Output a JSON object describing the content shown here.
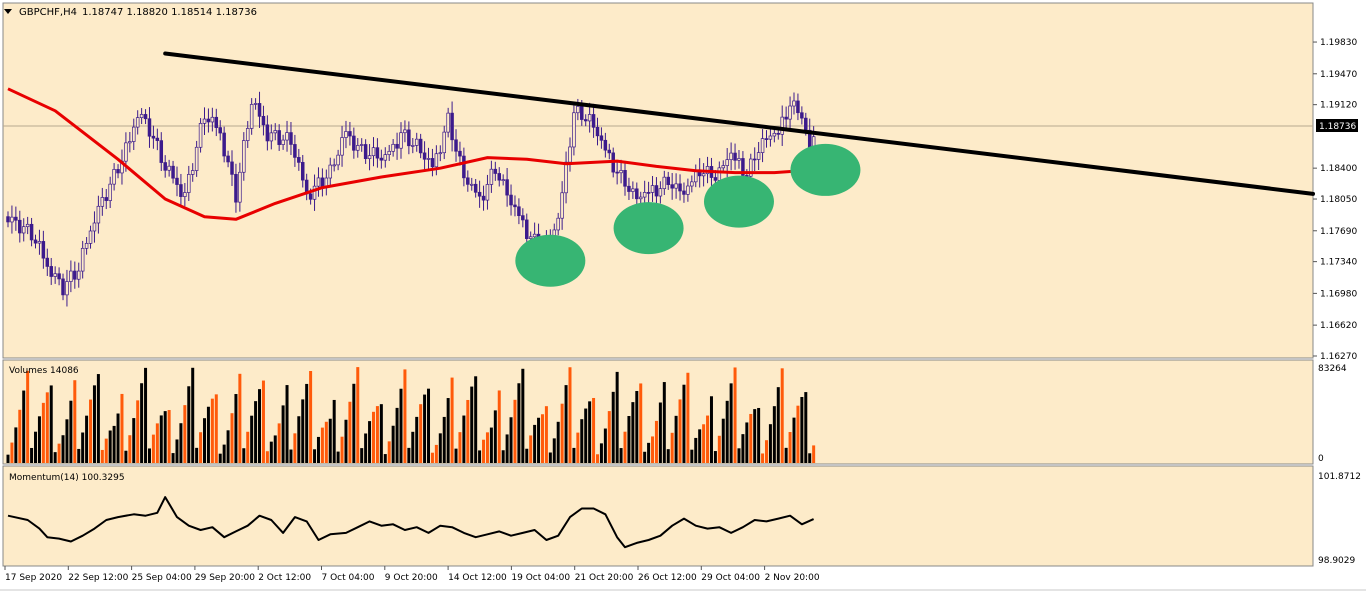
{
  "header": {
    "symbol_label": "GBPCHF,H4",
    "ohlc_label": "1.18747 1.18820 1.18514 1.18736"
  },
  "volumes": {
    "label": "Volumes 14086",
    "max_label": "83264",
    "min_label": "0"
  },
  "momentum": {
    "label": "Momentum(14) 100.3295",
    "max_label": "101.8712",
    "min_label": "98.9029"
  },
  "colors": {
    "background": "#fdebc9",
    "candle": "#3c1b8c",
    "ma": "#e80000",
    "trendline": "#000000",
    "vol_up": "#000000",
    "vol_down": "#ff5a0a",
    "marker": "#37b573"
  },
  "chart_data": [
    {
      "type": "candlestick",
      "instrument": "GBPCHF",
      "timeframe": "H4",
      "last_price": "1.18736",
      "ylim": [
        1.1627,
        1.2025
      ],
      "y_ticks": [
        "1.19830",
        "1.19470",
        "1.19120",
        "1.18400",
        "1.18050",
        "1.17690",
        "1.17340",
        "1.16980",
        "1.16620",
        "1.16270"
      ],
      "x_ticks": [
        "17 Sep 2020",
        "22 Sep 12:00",
        "25 Sep 04:00",
        "29 Sep 20:00",
        "2 Oct 12:00",
        "7 Oct 04:00",
        "9 Oct 20:00",
        "14 Oct 12:00",
        "19 Oct 04:00",
        "21 Oct 20:00",
        "26 Oct 12:00",
        "29 Oct 04:00",
        "2 Nov 20:00"
      ],
      "close_path": [
        [
          0,
          1.1785
        ],
        [
          6,
          1.1765
        ],
        [
          10,
          1.173
        ],
        [
          14,
          1.1705
        ],
        [
          18,
          1.1725
        ],
        [
          22,
          1.1785
        ],
        [
          27,
          1.183
        ],
        [
          31,
          1.187
        ],
        [
          33,
          1.1905
        ],
        [
          36,
          1.1885
        ],
        [
          40,
          1.184
        ],
        [
          45,
          1.181
        ],
        [
          50,
          1.19
        ],
        [
          54,
          1.188
        ],
        [
          58,
          1.181
        ],
        [
          62,
          1.1915
        ],
        [
          66,
          1.188
        ],
        [
          72,
          1.187
        ],
        [
          76,
          1.181
        ],
        [
          82,
          1.1835
        ],
        [
          86,
          1.188
        ],
        [
          90,
          1.186
        ],
        [
          96,
          1.185
        ],
        [
          100,
          1.188
        ],
        [
          104,
          1.1865
        ],
        [
          108,
          1.184
        ],
        [
          112,
          1.1895
        ],
        [
          116,
          1.183
        ],
        [
          120,
          1.1805
        ],
        [
          124,
          1.184
        ],
        [
          128,
          1.18
        ],
        [
          132,
          1.177
        ],
        [
          136,
          1.1745
        ],
        [
          140,
          1.178
        ],
        [
          144,
          1.1905
        ],
        [
          148,
          1.1895
        ],
        [
          152,
          1.186
        ],
        [
          156,
          1.183
        ],
        [
          160,
          1.1805
        ],
        [
          164,
          1.1815
        ],
        [
          168,
          1.1825
        ],
        [
          172,
          1.181
        ],
        [
          176,
          1.184
        ],
        [
          180,
          1.183
        ],
        [
          184,
          1.1855
        ],
        [
          188,
          1.1835
        ],
        [
          192,
          1.187
        ],
        [
          196,
          1.188
        ],
        [
          199,
          1.1915
        ],
        [
          202,
          1.19
        ],
        [
          204,
          1.186
        ],
        [
          205,
          1.18736
        ]
      ],
      "ma_line": [
        [
          0,
          1.193
        ],
        [
          12,
          1.1905
        ],
        [
          28,
          1.185
        ],
        [
          40,
          1.1805
        ],
        [
          50,
          1.1785
        ],
        [
          58,
          1.1782
        ],
        [
          68,
          1.18
        ],
        [
          80,
          1.1818
        ],
        [
          95,
          1.183
        ],
        [
          110,
          1.184
        ],
        [
          122,
          1.1852
        ],
        [
          132,
          1.185
        ],
        [
          142,
          1.1845
        ],
        [
          155,
          1.1848
        ],
        [
          165,
          1.1842
        ],
        [
          175,
          1.1837
        ],
        [
          185,
          1.1835
        ],
        [
          195,
          1.1835
        ],
        [
          205,
          1.1838
        ]
      ],
      "trendline": [
        [
          40,
          1.197
        ],
        [
          330,
          1.1812
        ]
      ],
      "support_markers": [
        {
          "x": 138,
          "y": 1.1735
        },
        {
          "x": 163,
          "y": 1.1772
        },
        {
          "x": 186,
          "y": 1.1802
        },
        {
          "x": 208,
          "y": 1.1838
        }
      ]
    },
    {
      "type": "bar",
      "name": "Volumes",
      "ylim": [
        0,
        83264
      ],
      "ticks": [
        "83264",
        "0"
      ]
    },
    {
      "type": "line",
      "name": "Momentum(14)",
      "last_value": "100.3295",
      "ylim": [
        98.9029,
        101.8712
      ],
      "ticks": [
        "101.8712",
        "98.9029"
      ],
      "path": [
        [
          0,
          100.45
        ],
        [
          5,
          100.3
        ],
        [
          8,
          100.0
        ],
        [
          10,
          99.7
        ],
        [
          13,
          99.65
        ],
        [
          16,
          99.55
        ],
        [
          19,
          99.75
        ],
        [
          22,
          100.0
        ],
        [
          25,
          100.3
        ],
        [
          28,
          100.4
        ],
        [
          32,
          100.5
        ],
        [
          35,
          100.45
        ],
        [
          38,
          100.55
        ],
        [
          40,
          101.1
        ],
        [
          43,
          100.4
        ],
        [
          46,
          100.1
        ],
        [
          49,
          99.95
        ],
        [
          52,
          100.05
        ],
        [
          55,
          99.7
        ],
        [
          58,
          99.9
        ],
        [
          61,
          100.1
        ],
        [
          64,
          100.45
        ],
        [
          67,
          100.3
        ],
        [
          70,
          99.85
        ],
        [
          73,
          100.4
        ],
        [
          76,
          100.25
        ],
        [
          79,
          99.6
        ],
        [
          82,
          99.8
        ],
        [
          86,
          99.85
        ],
        [
          89,
          100.05
        ],
        [
          92,
          100.25
        ],
        [
          95,
          100.1
        ],
        [
          98,
          100.15
        ],
        [
          101,
          99.95
        ],
        [
          104,
          100.05
        ],
        [
          107,
          99.85
        ],
        [
          110,
          100.1
        ],
        [
          113,
          100.05
        ],
        [
          116,
          99.85
        ],
        [
          119,
          99.7
        ],
        [
          122,
          99.8
        ],
        [
          125,
          99.9
        ],
        [
          128,
          99.75
        ],
        [
          131,
          99.85
        ],
        [
          134,
          99.95
        ],
        [
          137,
          99.6
        ],
        [
          140,
          99.75
        ],
        [
          143,
          100.4
        ],
        [
          146,
          100.7
        ],
        [
          149,
          100.7
        ],
        [
          152,
          100.5
        ],
        [
          155,
          99.7
        ],
        [
          157,
          99.35
        ],
        [
          160,
          99.5
        ],
        [
          163,
          99.6
        ],
        [
          166,
          99.75
        ],
        [
          169,
          100.1
        ],
        [
          172,
          100.35
        ],
        [
          175,
          100.1
        ],
        [
          178,
          100.0
        ],
        [
          181,
          100.05
        ],
        [
          184,
          99.85
        ],
        [
          187,
          100.05
        ],
        [
          190,
          100.3
        ],
        [
          193,
          100.25
        ],
        [
          196,
          100.35
        ],
        [
          199,
          100.45
        ],
        [
          202,
          100.15
        ],
        [
          205,
          100.33
        ]
      ]
    }
  ]
}
